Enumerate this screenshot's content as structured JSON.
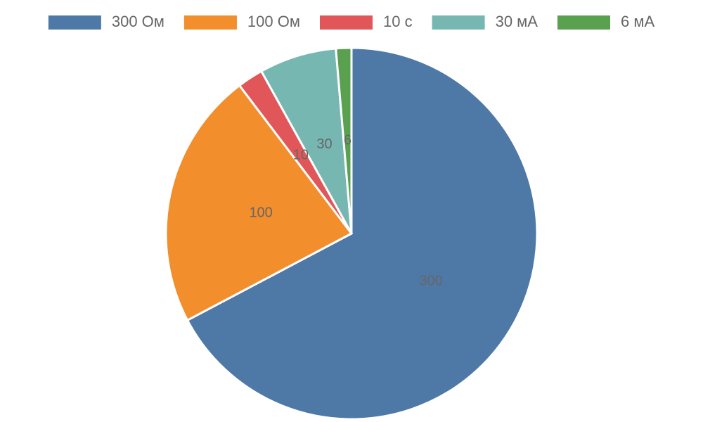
{
  "chart_data": {
    "type": "pie",
    "categories": [
      "300 Ом",
      "100 Ом",
      "10 с",
      "30 мА",
      "6 мА"
    ],
    "values": [
      300,
      100,
      10,
      30,
      6
    ],
    "colors": [
      "#4e79a7",
      "#f28e2b",
      "#e15759",
      "#76b7b2",
      "#59a14f"
    ],
    "legend": "top"
  }
}
